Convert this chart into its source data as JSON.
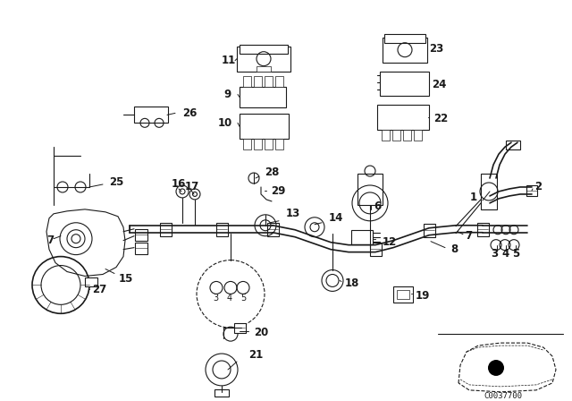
{
  "bg_color": "#ffffff",
  "line_color": "#1a1a1a",
  "diagram_code": "C0037700",
  "figsize": [
    6.4,
    4.48
  ],
  "dpi": 100
}
